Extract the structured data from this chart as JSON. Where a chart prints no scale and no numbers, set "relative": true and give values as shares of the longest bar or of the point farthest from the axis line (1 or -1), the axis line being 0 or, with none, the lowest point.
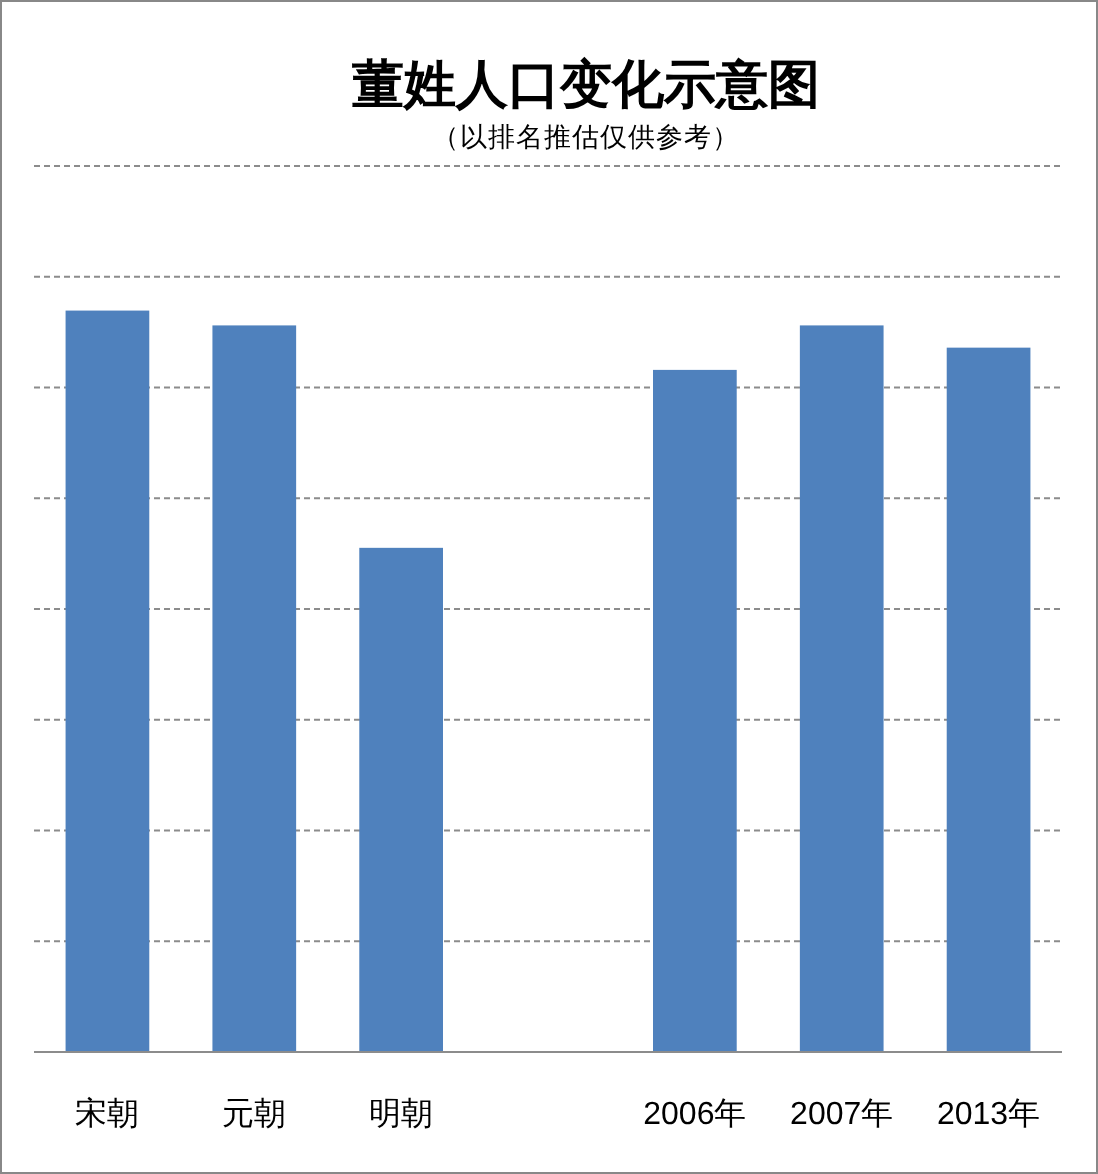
{
  "chart_data": {
    "type": "bar",
    "title": "董姓人口变化示意图",
    "subtitle": "（以排名推估仅供参考）",
    "categories": [
      "宋朝",
      "元朝",
      "明朝",
      null,
      "2006年",
      "2007年",
      "2013年"
    ],
    "values": [
      1,
      0.98,
      0.68,
      null,
      0.92,
      0.98,
      0.95
    ],
    "color": "#4f81bd",
    "relative": true,
    "grid": "y"
  }
}
